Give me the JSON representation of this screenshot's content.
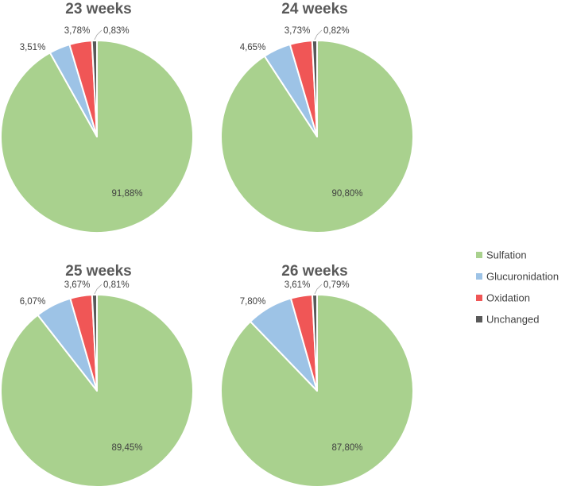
{
  "chart_data": {
    "type": "pie",
    "categories": [
      "Sulfation",
      "Glucuronidation",
      "Oxidation",
      "Unchanged"
    ],
    "colors": [
      "#a9d18e",
      "#9dc3e6",
      "#f05656",
      "#595959"
    ],
    "charts": [
      {
        "title": "23 weeks",
        "values": [
          91.88,
          3.51,
          3.78,
          0.83
        ],
        "labels": [
          "91,88%",
          "3,51%",
          "3,78%",
          "0,83%"
        ]
      },
      {
        "title": "24 weeks",
        "values": [
          90.8,
          4.65,
          3.73,
          0.82
        ],
        "labels": [
          "90,80%",
          "4,65%",
          "3,73%",
          "0,82%"
        ]
      },
      {
        "title": "25 weeks",
        "values": [
          89.45,
          6.07,
          3.67,
          0.81
        ],
        "labels": [
          "89,45%",
          "6,07%",
          "3,67%",
          "0,81%"
        ]
      },
      {
        "title": "26 weeks",
        "values": [
          87.8,
          7.8,
          3.61,
          0.79
        ],
        "labels": [
          "87,80%",
          "7,80%",
          "3,61%",
          "0,79%"
        ]
      }
    ],
    "legend": {
      "position": "right",
      "entries": [
        "Sulfation",
        "Glucuronidation",
        "Oxidation",
        "Unchanged"
      ]
    }
  }
}
